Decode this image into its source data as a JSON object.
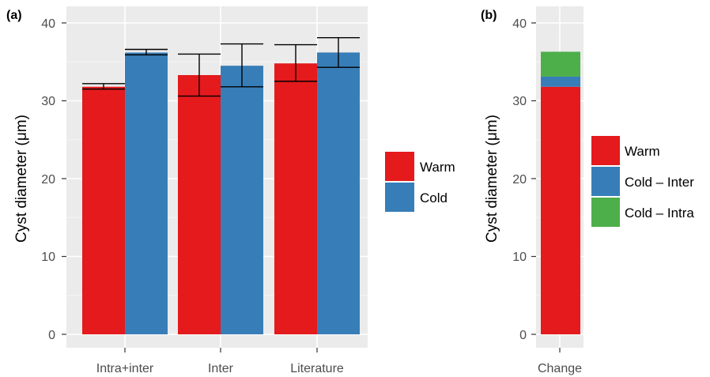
{
  "colors": {
    "warm": "#E41A1C",
    "cold": "#377EB8",
    "intra": "#4DAF4A",
    "panel_bg": "#EBEBEB",
    "grid": "#FFFFFF"
  },
  "chart_data": [
    {
      "panel": "(a)",
      "type": "bar",
      "ylabel": "Cyst diameter (μm)",
      "ylim": [
        0,
        40
      ],
      "yticks": [
        "0",
        "10",
        "20",
        "30",
        "40"
      ],
      "categories": [
        "Intra+inter",
        "Inter",
        "Literature"
      ],
      "series": [
        {
          "name": "Warm",
          "color": "#E41A1C",
          "values": [
            31.8,
            33.3,
            34.8
          ],
          "err_low": [
            31.5,
            30.6,
            32.5
          ],
          "err_high": [
            32.2,
            36.0,
            37.2
          ]
        },
        {
          "name": "Cold",
          "color": "#377EB8",
          "values": [
            36.2,
            34.5,
            36.2
          ],
          "err_low": [
            35.9,
            31.8,
            34.3
          ],
          "err_high": [
            36.6,
            37.3,
            38.1
          ]
        }
      ],
      "legend": {
        "position": "right",
        "entries": [
          "Warm",
          "Cold"
        ]
      },
      "grid": true
    },
    {
      "panel": "(b)",
      "type": "bar",
      "stacked": true,
      "ylabel": "Cyst diameter (μm)",
      "ylim": [
        0,
        40
      ],
      "yticks": [
        "0",
        "10",
        "20",
        "30",
        "40"
      ],
      "categories": [
        "Change"
      ],
      "series": [
        {
          "name": "Warm",
          "color": "#E41A1C",
          "values": [
            31.8
          ]
        },
        {
          "name": "Cold – Inter",
          "color": "#377EB8",
          "values": [
            1.3
          ]
        },
        {
          "name": "Cold – Intra",
          "color": "#4DAF4A",
          "values": [
            3.2
          ]
        }
      ],
      "legend": {
        "position": "right",
        "entries": [
          "Warm",
          "Cold – Inter",
          "Cold – Intra"
        ]
      },
      "grid": true
    }
  ]
}
